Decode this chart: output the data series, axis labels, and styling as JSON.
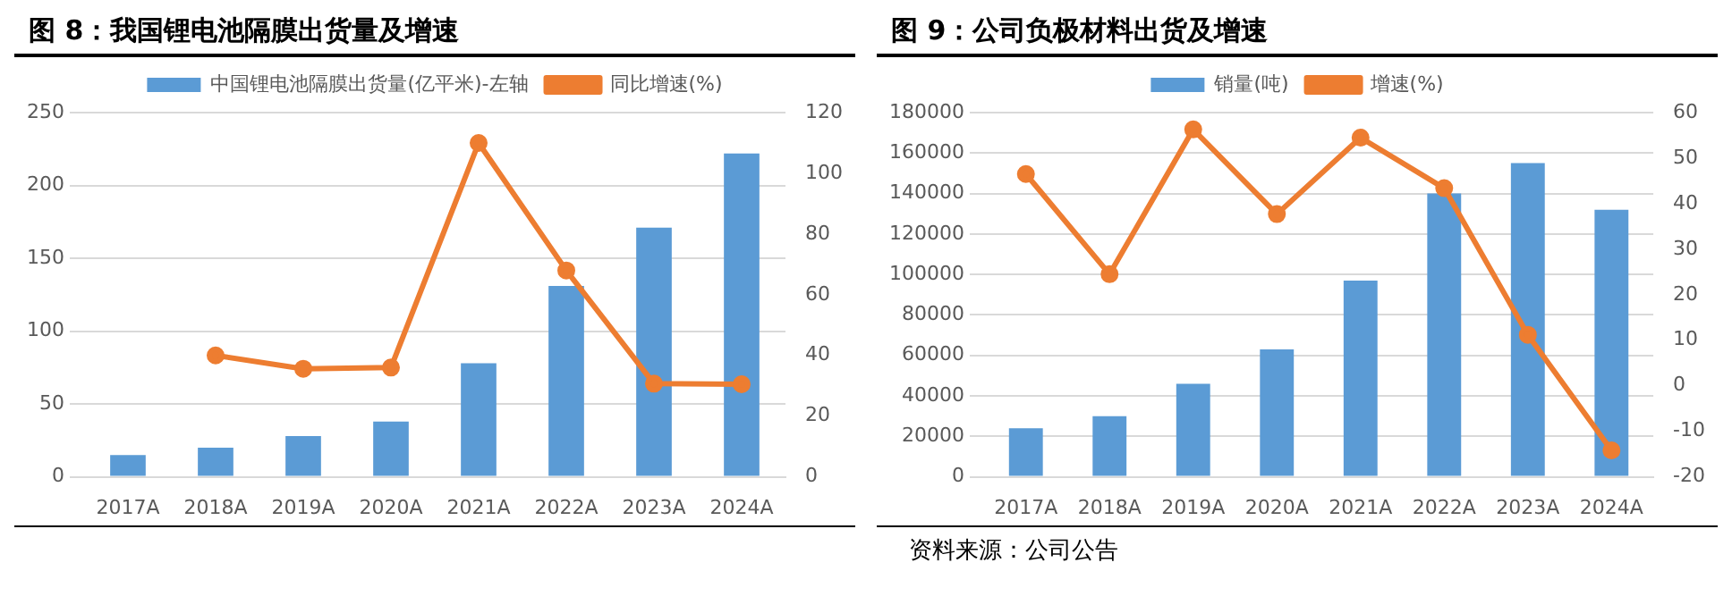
{
  "chart_data": [
    {
      "type": "bar",
      "title": "图 8：我国锂电池隔膜出货量及增速",
      "categories": [
        "2017A",
        "2018A",
        "2019A",
        "2020A",
        "2021A",
        "2022A",
        "2023A",
        "2024A"
      ],
      "series": [
        {
          "name": "中国锂电池隔膜出货量(亿平米)-左轴",
          "color": "#5b9bd5",
          "values": [
            15,
            20,
            28,
            38,
            78,
            131,
            171,
            222
          ]
        },
        {
          "name": "同比增速(%)",
          "type": "line",
          "axis": "y2",
          "color": "#ed7d31",
          "marker": "circle",
          "values": [
            null,
            40,
            35.6,
            36,
            110,
            68,
            30.7,
            30.5
          ]
        }
      ],
      "ylim": [
        0,
        250
      ],
      "yticks": [
        0,
        50,
        100,
        150,
        200,
        250
      ],
      "y2lim": [
        0,
        120
      ],
      "y2ticks": [
        0,
        20,
        40,
        60,
        80,
        100,
        120
      ],
      "grid": "y",
      "legend": "top"
    },
    {
      "type": "bar",
      "title": "图 9：公司负极材料出货及增速",
      "categories": [
        "2017A",
        "2018A",
        "2019A",
        "2020A",
        "2021A",
        "2022A",
        "2023A",
        "2024A"
      ],
      "series": [
        {
          "name": "销量(吨)",
          "color": "#5b9bd5",
          "values": [
            24000,
            30000,
            46000,
            63000,
            97000,
            140000,
            155000,
            132000
          ]
        },
        {
          "name": "增速(%)",
          "type": "line",
          "axis": "y2",
          "color": "#ed7d31",
          "marker": "circle",
          "values": [
            46.5,
            24.5,
            56.3,
            37.7,
            54.5,
            43.4,
            11.2,
            -14.2
          ]
        }
      ],
      "ylim": [
        0,
        180000
      ],
      "yticks": [
        0,
        20000,
        40000,
        60000,
        80000,
        100000,
        120000,
        140000,
        160000,
        180000
      ],
      "y2lim": [
        -20,
        60
      ],
      "y2ticks": [
        -20,
        -10,
        0,
        10,
        20,
        30,
        40,
        50,
        60
      ],
      "grid": "y",
      "legend": "top",
      "annotations": [
        "资料来源：公司公告"
      ]
    }
  ]
}
